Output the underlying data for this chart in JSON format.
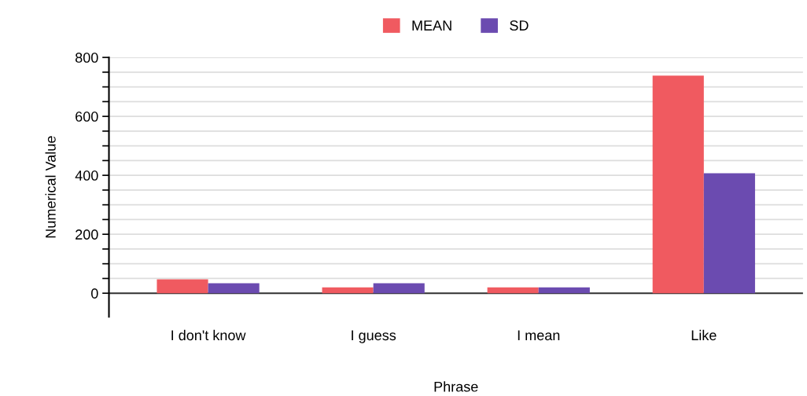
{
  "chart_data": {
    "type": "bar",
    "xlabel": "Phrase",
    "ylabel": "Numerical Value",
    "categories": [
      "I don't know",
      "I guess",
      "I mean",
      "Like"
    ],
    "series": [
      {
        "name": "MEAN",
        "color": "#f05a60",
        "values": [
          47,
          20,
          20,
          738
        ]
      },
      {
        "name": "SD",
        "color": "#6b4bb0",
        "values": [
          34,
          34,
          20,
          407
        ]
      }
    ],
    "ylim": [
      -80,
      800
    ],
    "yticks": [
      0,
      {
        "value": 50,
        "label": null
      },
      {
        "value": 100,
        "label": null
      },
      {
        "value": 150,
        "label": null
      },
      200,
      {
        "value": 250,
        "label": null
      },
      {
        "value": 300,
        "label": null
      },
      {
        "value": 350,
        "label": null
      },
      400,
      {
        "value": 450,
        "label": null
      },
      {
        "value": 500,
        "label": null
      },
      {
        "value": 550,
        "label": null
      },
      600,
      {
        "value": 650,
        "label": null
      },
      {
        "value": 700,
        "label": null
      },
      {
        "value": 750,
        "label": null
      },
      800
    ],
    "grid": "y",
    "legend": "top"
  }
}
